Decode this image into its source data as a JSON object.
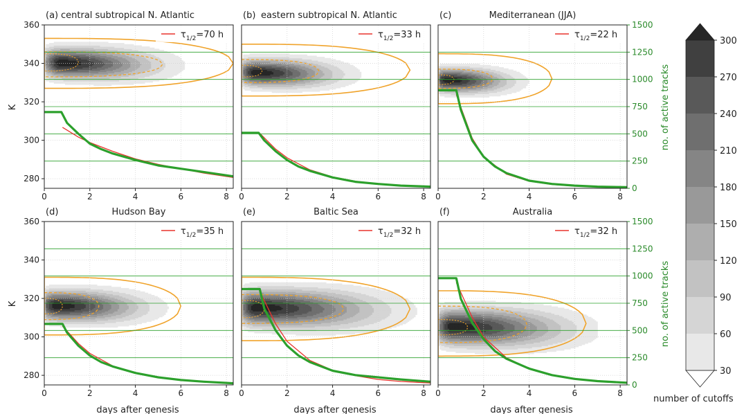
{
  "figure": {
    "left_ylabel": "K",
    "right_ylabel": "no. of active tracks",
    "xlabel": "days after genesis",
    "colorbar_label": "number of cutoffs"
  },
  "colors": {
    "tracks": "#2ca02c",
    "fit": "#e8322b",
    "contour": "#f0a32a",
    "axis_right": "#2a8a2a"
  },
  "axes": {
    "x_ticks": [
      0,
      2,
      4,
      6,
      8
    ],
    "x_range": [
      0,
      8.3
    ],
    "k_ticks": [
      280,
      300,
      320,
      340,
      360
    ],
    "k_range": [
      275,
      360
    ],
    "tracks_ticks": [
      0,
      250,
      500,
      750,
      1000,
      1250,
      1500
    ],
    "tracks_range": [
      0,
      1500
    ]
  },
  "colorbar": {
    "levels": [
      30,
      60,
      90,
      120,
      150,
      180,
      210,
      240,
      270,
      300
    ],
    "tick_labels": [
      "30",
      "60",
      "90",
      "120",
      "150",
      "180",
      "210",
      "240",
      "270",
      "300"
    ],
    "colors": [
      "#e8e8e8",
      "#d5d5d5",
      "#c2c2c2",
      "#aeaeae",
      "#999999",
      "#858585",
      "#6f6f6f",
      "#595959",
      "#404040",
      "#262626"
    ]
  },
  "chart_data": [
    {
      "type": "area",
      "panel_letter": "(a)",
      "title": "central subtropical N. Atlantic",
      "fit_label": "τ",
      "fit_sub": "1/2",
      "fit_value": "=70 h",
      "tracks_x": [
        0,
        0.2,
        0.4,
        0.6,
        0.75,
        1.0,
        1.5,
        2,
        2.5,
        3,
        4,
        5,
        6,
        7,
        8.3
      ],
      "tracks_y": [
        700,
        700,
        700,
        700,
        700,
        600,
        500,
        410,
        360,
        320,
        260,
        210,
        180,
        150,
        110
      ],
      "fit_x": [
        0.8,
        1.5,
        2,
        3,
        4,
        5,
        6,
        7,
        8.3
      ],
      "fit_y": [
        560,
        470,
        420,
        340,
        270,
        220,
        180,
        140,
        100
      ],
      "density_center": [
        1.7,
        340
      ],
      "density_peak_x": 0.7,
      "density_spread": [
        2.0,
        5.0
      ],
      "outer_contour": [
        8.3,
        327,
        353
      ],
      "inner_contour": [
        5.2,
        333,
        346
      ],
      "core_contour": [
        1.5,
        336,
        345
      ]
    },
    {
      "type": "area",
      "panel_letter": "(b)",
      "title": "eastern subtropical N. Atlantic",
      "fit_label": "τ",
      "fit_sub": "1/2",
      "fit_value": "=33 h",
      "tracks_x": [
        0,
        0.3,
        0.6,
        0.75,
        1.0,
        1.5,
        2,
        2.5,
        3,
        4,
        5,
        6,
        7,
        8.3
      ],
      "tracks_y": [
        510,
        510,
        510,
        510,
        440,
        340,
        260,
        200,
        160,
        100,
        60,
        40,
        25,
        15
      ],
      "fit_x": [
        0.8,
        1.5,
        2,
        3,
        4,
        5,
        6,
        7,
        8.3
      ],
      "fit_y": [
        505,
        360,
        280,
        170,
        105,
        65,
        40,
        25,
        15
      ],
      "density_center": [
        1.5,
        335
      ],
      "density_peak_x": 0.6,
      "density_spread": [
        1.7,
        4.5
      ],
      "outer_contour": [
        7.4,
        323,
        350
      ],
      "inner_contour": [
        3.4,
        330,
        342
      ],
      "core_contour": [
        0.9,
        333,
        339
      ]
    },
    {
      "type": "area",
      "panel_letter": "(c)",
      "title": "Mediterranean (JJA)",
      "fit_label": "τ",
      "fit_sub": "1/2",
      "fit_value": "=22 h",
      "tracks_x": [
        0,
        0.3,
        0.6,
        0.8,
        1.0,
        1.5,
        2,
        2.5,
        3,
        4,
        5,
        6,
        7,
        8.3
      ],
      "tracks_y": [
        900,
        900,
        900,
        900,
        720,
        440,
        290,
        200,
        140,
        70,
        40,
        25,
        15,
        10
      ],
      "fit_x": [
        0.8,
        1.5,
        2,
        3,
        4,
        5,
        6,
        7,
        8.3
      ],
      "fit_y": [
        860,
        460,
        290,
        130,
        65,
        35,
        20,
        12,
        8
      ],
      "density_center": [
        1.0,
        331
      ],
      "density_peak_x": 0.4,
      "density_spread": [
        1.3,
        4.0
      ],
      "outer_contour": [
        5.0,
        319,
        345
      ],
      "inner_contour": [
        2.4,
        327,
        337
      ],
      "core_contour": [
        0.7,
        329,
        334
      ]
    },
    {
      "type": "area",
      "panel_letter": "(d)",
      "title": "Hudson Bay",
      "fit_label": "τ",
      "fit_sub": "1/2",
      "fit_value": "=35 h",
      "tracks_x": [
        0,
        0.3,
        0.6,
        0.8,
        1.0,
        1.5,
        2,
        2.5,
        3,
        4,
        5,
        6,
        7,
        8.3
      ],
      "tracks_y": [
        560,
        560,
        560,
        560,
        480,
        360,
        270,
        210,
        170,
        110,
        70,
        45,
        30,
        15
      ],
      "fit_x": [
        0.8,
        1.5,
        2,
        3,
        4,
        5,
        6,
        7,
        8.3
      ],
      "fit_y": [
        540,
        380,
        290,
        175,
        110,
        70,
        45,
        30,
        15
      ],
      "density_center": [
        1.3,
        316
      ],
      "density_peak_x": 0.5,
      "density_spread": [
        1.8,
        5.0
      ],
      "outer_contour": [
        6.0,
        301,
        331
      ],
      "inner_contour": [
        2.4,
        309,
        323
      ],
      "core_contour": [
        0.8,
        312,
        320
      ]
    },
    {
      "type": "area",
      "panel_letter": "(e)",
      "title": "Baltic Sea",
      "fit_label": "τ",
      "fit_sub": "1/2",
      "fit_value": "=32 h",
      "tracks_x": [
        0,
        0.3,
        0.6,
        0.8,
        1.0,
        1.5,
        2,
        2.5,
        3,
        4,
        5,
        6,
        7,
        8.3
      ],
      "tracks_y": [
        880,
        880,
        880,
        880,
        700,
        500,
        360,
        270,
        210,
        130,
        90,
        70,
        50,
        30
      ],
      "fit_x": [
        0.8,
        1.5,
        2,
        3,
        4,
        5,
        6,
        7,
        8.3
      ],
      "fit_y": [
        860,
        560,
        400,
        225,
        135,
        85,
        50,
        32,
        18
      ],
      "density_center": [
        1.9,
        315
      ],
      "density_peak_x": 0.6,
      "density_spread": [
        2.6,
        6.0
      ],
      "outer_contour": [
        7.4,
        298,
        331
      ],
      "inner_contour": [
        4.5,
        307,
        322
      ],
      "core_contour": [
        1.0,
        310,
        319
      ]
    },
    {
      "type": "area",
      "panel_letter": "(f)",
      "title": "Australia",
      "fit_label": "τ",
      "fit_sub": "1/2",
      "fit_value": "=32 h",
      "tracks_x": [
        0,
        0.3,
        0.6,
        0.8,
        1.0,
        1.5,
        2,
        2.5,
        3,
        4,
        5,
        6,
        7,
        8.3
      ],
      "tracks_y": [
        980,
        980,
        980,
        980,
        790,
        570,
        420,
        310,
        240,
        150,
        90,
        55,
        35,
        20
      ],
      "fit_x": [
        0.8,
        1.5,
        2,
        3,
        4,
        5,
        6,
        7,
        8.3
      ],
      "fit_y": [
        940,
        620,
        440,
        250,
        150,
        90,
        55,
        35,
        20
      ],
      "density_center": [
        1.8,
        305
      ],
      "density_peak_x": 0.6,
      "density_spread": [
        2.4,
        6.0
      ],
      "outer_contour": [
        6.5,
        290,
        324
      ],
      "inner_contour": [
        3.9,
        297,
        316
      ],
      "core_contour": [
        1.3,
        301,
        309
      ]
    }
  ]
}
